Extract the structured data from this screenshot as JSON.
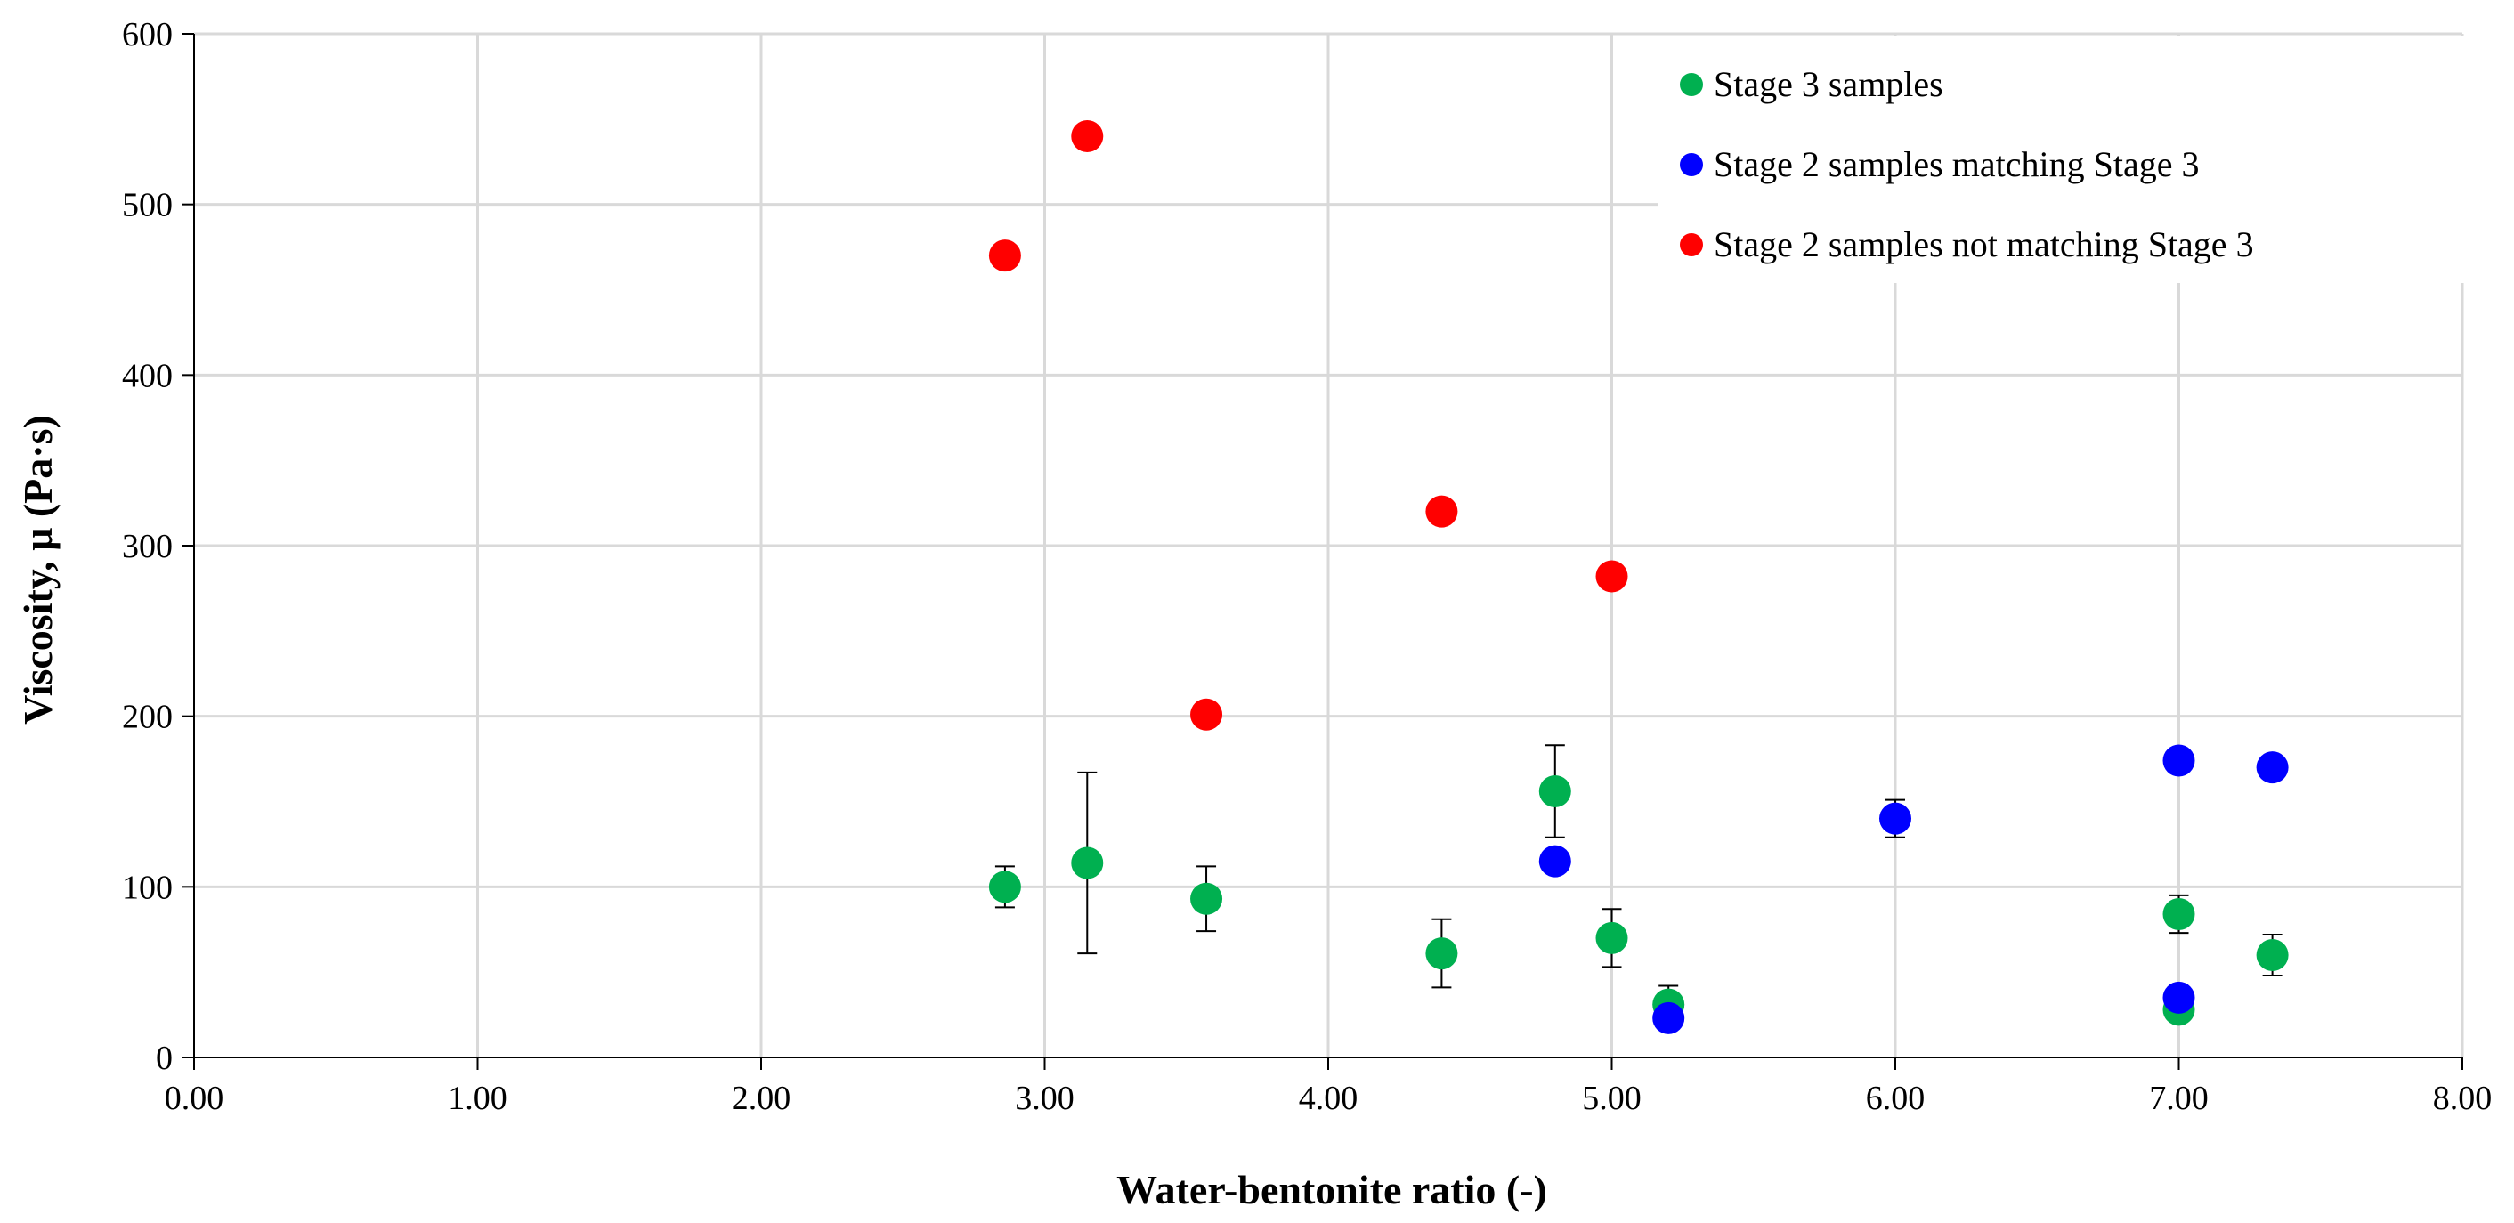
{
  "chart_data": {
    "type": "scatter",
    "xlabel": "Water-bentonite ratio (-)",
    "ylabel": "Viscosity, μ (Pa·s)",
    "xlim": [
      0,
      8
    ],
    "ylim": [
      0,
      600
    ],
    "x_ticks": [
      "0.00",
      "1.00",
      "2.00",
      "3.00",
      "4.00",
      "5.00",
      "6.00",
      "7.00",
      "8.00"
    ],
    "y_ticks": [
      "0",
      "100",
      "200",
      "300",
      "400",
      "500",
      "600"
    ],
    "grid": true,
    "legend_position": "top-right",
    "series": [
      {
        "name": "Stage 3 samples",
        "color": "#00b050",
        "points": [
          {
            "x": 2.86,
            "y": 100,
            "err": 12
          },
          {
            "x": 3.15,
            "y": 114,
            "err": 53
          },
          {
            "x": 3.57,
            "y": 93,
            "err": 19
          },
          {
            "x": 4.4,
            "y": 61,
            "err": 20
          },
          {
            "x": 4.8,
            "y": 156,
            "err": 27
          },
          {
            "x": 5.0,
            "y": 70,
            "err": 17
          },
          {
            "x": 5.2,
            "y": 31,
            "err": 11
          },
          {
            "x": 7.0,
            "y": 28,
            "err": null
          },
          {
            "x": 7.0,
            "y": 84,
            "err": 11
          },
          {
            "x": 7.33,
            "y": 60,
            "err": 12
          }
        ]
      },
      {
        "name": "Stage 2 samples matching Stage 3",
        "color": "#0000ff",
        "points": [
          {
            "x": 4.8,
            "y": 115,
            "err": null
          },
          {
            "x": 5.2,
            "y": 23,
            "err": null
          },
          {
            "x": 6.0,
            "y": 140,
            "err": 11
          },
          {
            "x": 7.0,
            "y": 174,
            "err": null
          },
          {
            "x": 7.0,
            "y": 35,
            "err": null
          },
          {
            "x": 7.33,
            "y": 170,
            "err": null
          }
        ]
      },
      {
        "name": "Stage 2 samples not matching Stage 3",
        "color": "#ff0000",
        "points": [
          {
            "x": 2.86,
            "y": 470,
            "err": null
          },
          {
            "x": 3.15,
            "y": 540,
            "err": null
          },
          {
            "x": 3.57,
            "y": 201,
            "err": null
          },
          {
            "x": 4.4,
            "y": 320,
            "err": null
          },
          {
            "x": 5.0,
            "y": 282,
            "err": null
          }
        ]
      }
    ]
  }
}
